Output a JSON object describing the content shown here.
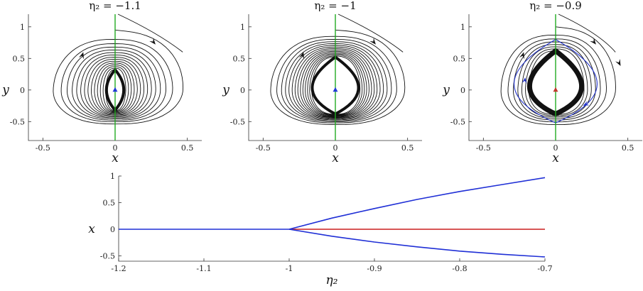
{
  "chart_data": [
    {
      "type": "line",
      "panel": "phase-portrait",
      "title": "η₂ = −1.1",
      "xlabel": "x",
      "ylabel": "y",
      "xlim": [
        -0.6,
        0.6
      ],
      "ylim": [
        -0.8,
        1.2
      ],
      "xticks": [
        "-0.5",
        "0",
        "0.5"
      ],
      "yticks": [
        "-0.5",
        "0",
        "0.5",
        "1"
      ],
      "xtick_values": [
        -0.5,
        0,
        0.5
      ],
      "ytick_values": [
        -0.5,
        0,
        0.5,
        1
      ],
      "reach": 0.52,
      "top": 0.95,
      "bottom": -0.58,
      "inner_radius": 0.06,
      "inner_top": 0.32,
      "inner_bottom": -0.32,
      "spiral_turns": 14,
      "equilibrium": {
        "x": 0,
        "y": 0
      },
      "equilibrium_color": "#1f3bd6",
      "nullcline_color": "#22aa22",
      "orbit_color": "#111111",
      "limit_cycle": false
    },
    {
      "type": "line",
      "panel": "phase-portrait",
      "title": "η₂ = −1",
      "xlabel": "x",
      "ylabel": "y",
      "xlim": [
        -0.6,
        0.6
      ],
      "ylim": [
        -0.8,
        1.2
      ],
      "xticks": [
        "-0.5",
        "0",
        "0.5"
      ],
      "yticks": [
        "-0.5",
        "0",
        "0.5",
        "1"
      ],
      "xtick_values": [
        -0.5,
        0,
        0.5
      ],
      "ytick_values": [
        -0.5,
        0,
        0.5,
        1
      ],
      "reach": 0.52,
      "top": 0.95,
      "bottom": -0.58,
      "inner_radius": 0.16,
      "inner_top": 0.52,
      "inner_bottom": -0.38,
      "spiral_turns": 14,
      "equilibrium": {
        "x": 0,
        "y": 0
      },
      "equilibrium_color": "#1f3bd6",
      "nullcline_color": "#22aa22",
      "orbit_color": "#111111",
      "limit_cycle": false
    },
    {
      "type": "line",
      "panel": "phase-portrait",
      "title": "η₂ = −0.9",
      "xlabel": "x",
      "ylabel": "y",
      "xlim": [
        -0.6,
        0.6
      ],
      "ylim": [
        -0.8,
        1.2
      ],
      "xticks": [
        "-0.5",
        "0",
        "0.5"
      ],
      "yticks": [
        "-0.5",
        "0",
        "0.5",
        "1"
      ],
      "xtick_values": [
        -0.5,
        0,
        0.5
      ],
      "ytick_values": [
        -0.5,
        0,
        0.5,
        1
      ],
      "reach": 0.46,
      "top": 1.0,
      "bottom": -0.6,
      "inner_radius": 0.18,
      "inner_top": 0.62,
      "inner_bottom": -0.38,
      "spiral_turns": 7,
      "equilibrium": {
        "x": 0,
        "y": 0
      },
      "equilibrium_color": "#c0392b",
      "nullcline_color": "#22aa22",
      "orbit_color": "#111111",
      "limit_cycle": true,
      "limit_cycle_color": "#2233cc"
    },
    {
      "type": "line",
      "panel": "bifurcation",
      "xlabel": "η₂",
      "ylabel": "x",
      "xlim": [
        -1.2,
        -0.7
      ],
      "ylim": [
        -0.6,
        1.0
      ],
      "xticks": [
        "-1.2",
        "-1.1",
        "-1",
        "-0.9",
        "-0.8",
        "-0.7"
      ],
      "xtick_values": [
        -1.2,
        -1.1,
        -1.0,
        -0.9,
        -0.8,
        -0.7
      ],
      "yticks": [
        "-0.5",
        "0",
        "0.5",
        "1"
      ],
      "ytick_values": [
        -0.5,
        0,
        0.5,
        1
      ],
      "series": [
        {
          "color": "#1f2fd6",
          "x": [
            -1.2,
            -1.0
          ],
          "y": [
            0,
            0
          ]
        },
        {
          "color": "#cc1f1f",
          "x": [
            -1.0,
            -0.7
          ],
          "y": [
            0,
            0
          ]
        },
        {
          "color": "#1f2fd6",
          "x": [
            -1.0,
            -0.95,
            -0.9,
            -0.85,
            -0.8,
            -0.75,
            -0.7
          ],
          "y": [
            0,
            0.21,
            0.39,
            0.56,
            0.71,
            0.84,
            0.97
          ]
        },
        {
          "color": "#1f2fd6",
          "x": [
            -1.0,
            -0.95,
            -0.9,
            -0.85,
            -0.8,
            -0.75,
            -0.7
          ],
          "y": [
            0,
            -0.13,
            -0.24,
            -0.33,
            -0.41,
            -0.47,
            -0.52
          ]
        }
      ]
    }
  ]
}
